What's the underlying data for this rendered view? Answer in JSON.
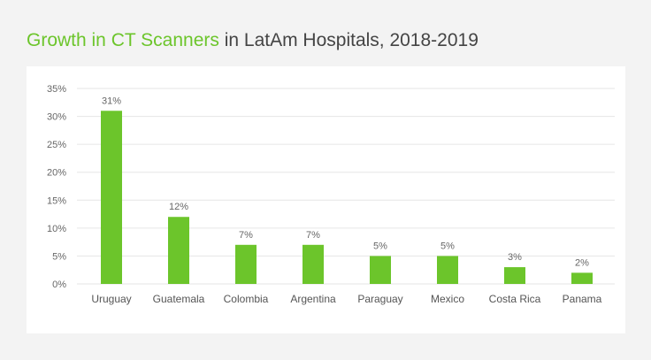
{
  "title_highlight": "Growth in CT Scanners",
  "title_rest": " in LatAm Hospitals, 2018-2019",
  "colors": {
    "bar": "#6cc52b",
    "title_accent": "#6cc52b",
    "grid": "#e6e6e6"
  },
  "chart_data": {
    "type": "bar",
    "title": "Growth in CT Scanners in LatAm Hospitals, 2018-2019",
    "categories": [
      "Uruguay",
      "Guatemala",
      "Colombia",
      "Argentina",
      "Paraguay",
      "Mexico",
      "Costa Rica",
      "Panama"
    ],
    "values": [
      31,
      12,
      7,
      7,
      5,
      5,
      3,
      2
    ],
    "data_labels": [
      "31%",
      "12%",
      "7%",
      "7%",
      "5%",
      "5%",
      "3%",
      "2%"
    ],
    "y_ticks": [
      0,
      5,
      10,
      15,
      20,
      25,
      30,
      35
    ],
    "y_tick_labels": [
      "0%",
      "5%",
      "10%",
      "15%",
      "20%",
      "25%",
      "30%",
      "35%"
    ],
    "ylim": [
      0,
      35
    ],
    "grid": true,
    "legend": "none"
  }
}
